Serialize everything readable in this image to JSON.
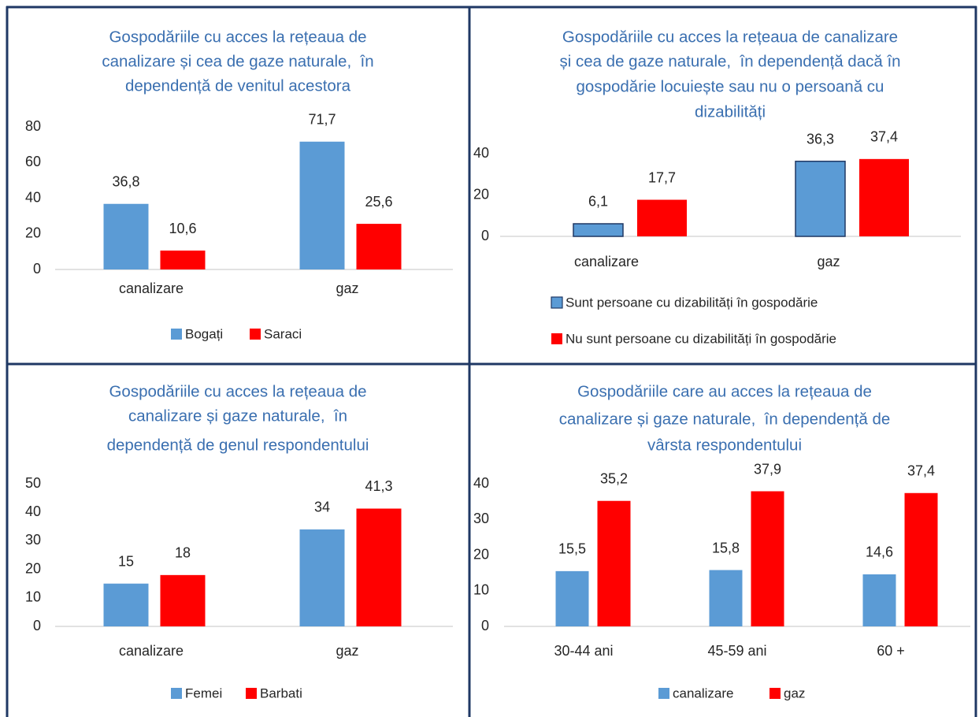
{
  "chart_data": [
    {
      "type": "bar",
      "title": [
        "Gospodăriile cu acces la rețeaua de",
        "canalizare și cea de gaze naturale,  în",
        "dependență de venitul acestora"
      ],
      "categories": [
        "canalizare",
        "gaz"
      ],
      "series": [
        {
          "name": "Bogați",
          "color": "#5b9bd5",
          "values": [
            36.8,
            71.7
          ],
          "value_labels": [
            "36,8",
            "71,7"
          ]
        },
        {
          "name": "Saraci",
          "color": "#ff0000",
          "values": [
            10.6,
            25.6
          ],
          "value_labels": [
            "10,6",
            "25,6"
          ]
        }
      ],
      "ylim": [
        0,
        80
      ],
      "yticks": [
        0,
        20,
        40,
        60,
        80
      ],
      "grid": false,
      "legend": "bottom"
    },
    {
      "type": "bar",
      "title": [
        "Gospodăriile cu acces la rețeaua de canalizare",
        "și cea de gaze naturale,  în dependență dacă în",
        "gospodărie locuiește sau nu o persoană cu",
        "dizabilități"
      ],
      "categories": [
        "canalizare",
        "gaz"
      ],
      "series": [
        {
          "name": "Sunt persoane cu dizabilități în gospodărie",
          "color": "#5b9bd5",
          "edgecolor": "#203864",
          "values": [
            6.1,
            36.3
          ],
          "value_labels": [
            "6,1",
            "36,3"
          ]
        },
        {
          "name": "Nu sunt persoane cu dizabilități în gospodărie",
          "color": "#ff0000",
          "values": [
            17.7,
            37.4
          ],
          "value_labels": [
            "17,7",
            "37,4"
          ]
        }
      ],
      "ylim": [
        0,
        40
      ],
      "yticks": [
        0,
        20,
        40
      ],
      "grid": false,
      "legend": "bottom"
    },
    {
      "type": "bar",
      "title": [
        "Gospodăriile cu acces la rețeaua de",
        "canalizare și gaze naturale,  în",
        "dependență de genul respondentului"
      ],
      "categories": [
        "canalizare",
        "gaz"
      ],
      "series": [
        {
          "name": "Femei",
          "color": "#5b9bd5",
          "values": [
            15,
            34
          ],
          "value_labels": [
            "15",
            "34"
          ]
        },
        {
          "name": "Barbati",
          "color": "#ff0000",
          "values": [
            18,
            41.3
          ],
          "value_labels": [
            "18",
            "41,3"
          ]
        }
      ],
      "ylim": [
        0,
        50
      ],
      "yticks": [
        0,
        10,
        20,
        30,
        40,
        50
      ],
      "grid": false,
      "legend": "bottom"
    },
    {
      "type": "bar",
      "title": [
        "Gospodăriile care au acces la rețeaua de",
        "canalizare și gaze naturale,  în dependență de",
        "vârsta respondentului"
      ],
      "categories": [
        "30-44 ani",
        "45-59 ani",
        "60 +"
      ],
      "series": [
        {
          "name": "canalizare",
          "color": "#5b9bd5",
          "values": [
            15.5,
            15.8,
            14.6
          ],
          "value_labels": [
            "15,5",
            "15,8",
            "14,6"
          ]
        },
        {
          "name": "gaz",
          "color": "#ff0000",
          "values": [
            35.2,
            37.9,
            37.4
          ],
          "value_labels": [
            "35,2",
            "37,9",
            "37,4"
          ]
        }
      ],
      "ylim": [
        0,
        40
      ],
      "yticks": [
        0,
        10,
        20,
        30,
        40
      ],
      "grid": false,
      "legend": "bottom"
    }
  ]
}
